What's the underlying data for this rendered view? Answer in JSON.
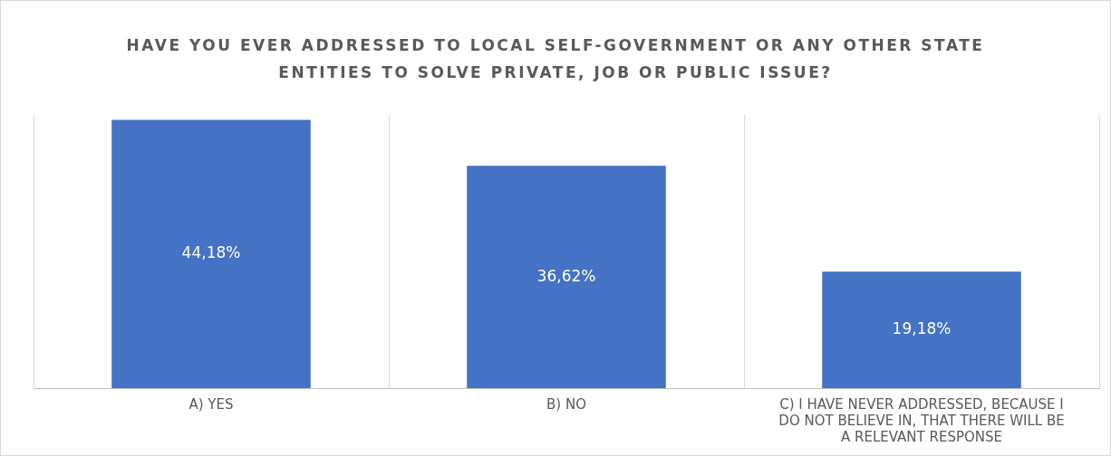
{
  "chart_data": {
    "type": "bar",
    "title": "HAVE YOU EVER ADDRESSED TO LOCAL SELF-GOVERNMENT OR ANY OTHER STATE ENTITIES TO SOLVE PRIVATE, JOB OR PUBLIC ISSUE?",
    "categories": [
      "A) YES",
      "B) NO",
      "C) I HAVE NEVER ADDRESSED, BECAUSE I DO NOT BELIEVE IN, THAT THERE WILL BE A RELEVANT RESPONSE"
    ],
    "values": [
      44.18,
      36.62,
      19.18
    ],
    "value_labels": [
      "44,18%",
      "36,62%",
      "19,18%"
    ],
    "color": "#4472c4",
    "grid": "x",
    "legend": false,
    "tick_labels": "x"
  }
}
